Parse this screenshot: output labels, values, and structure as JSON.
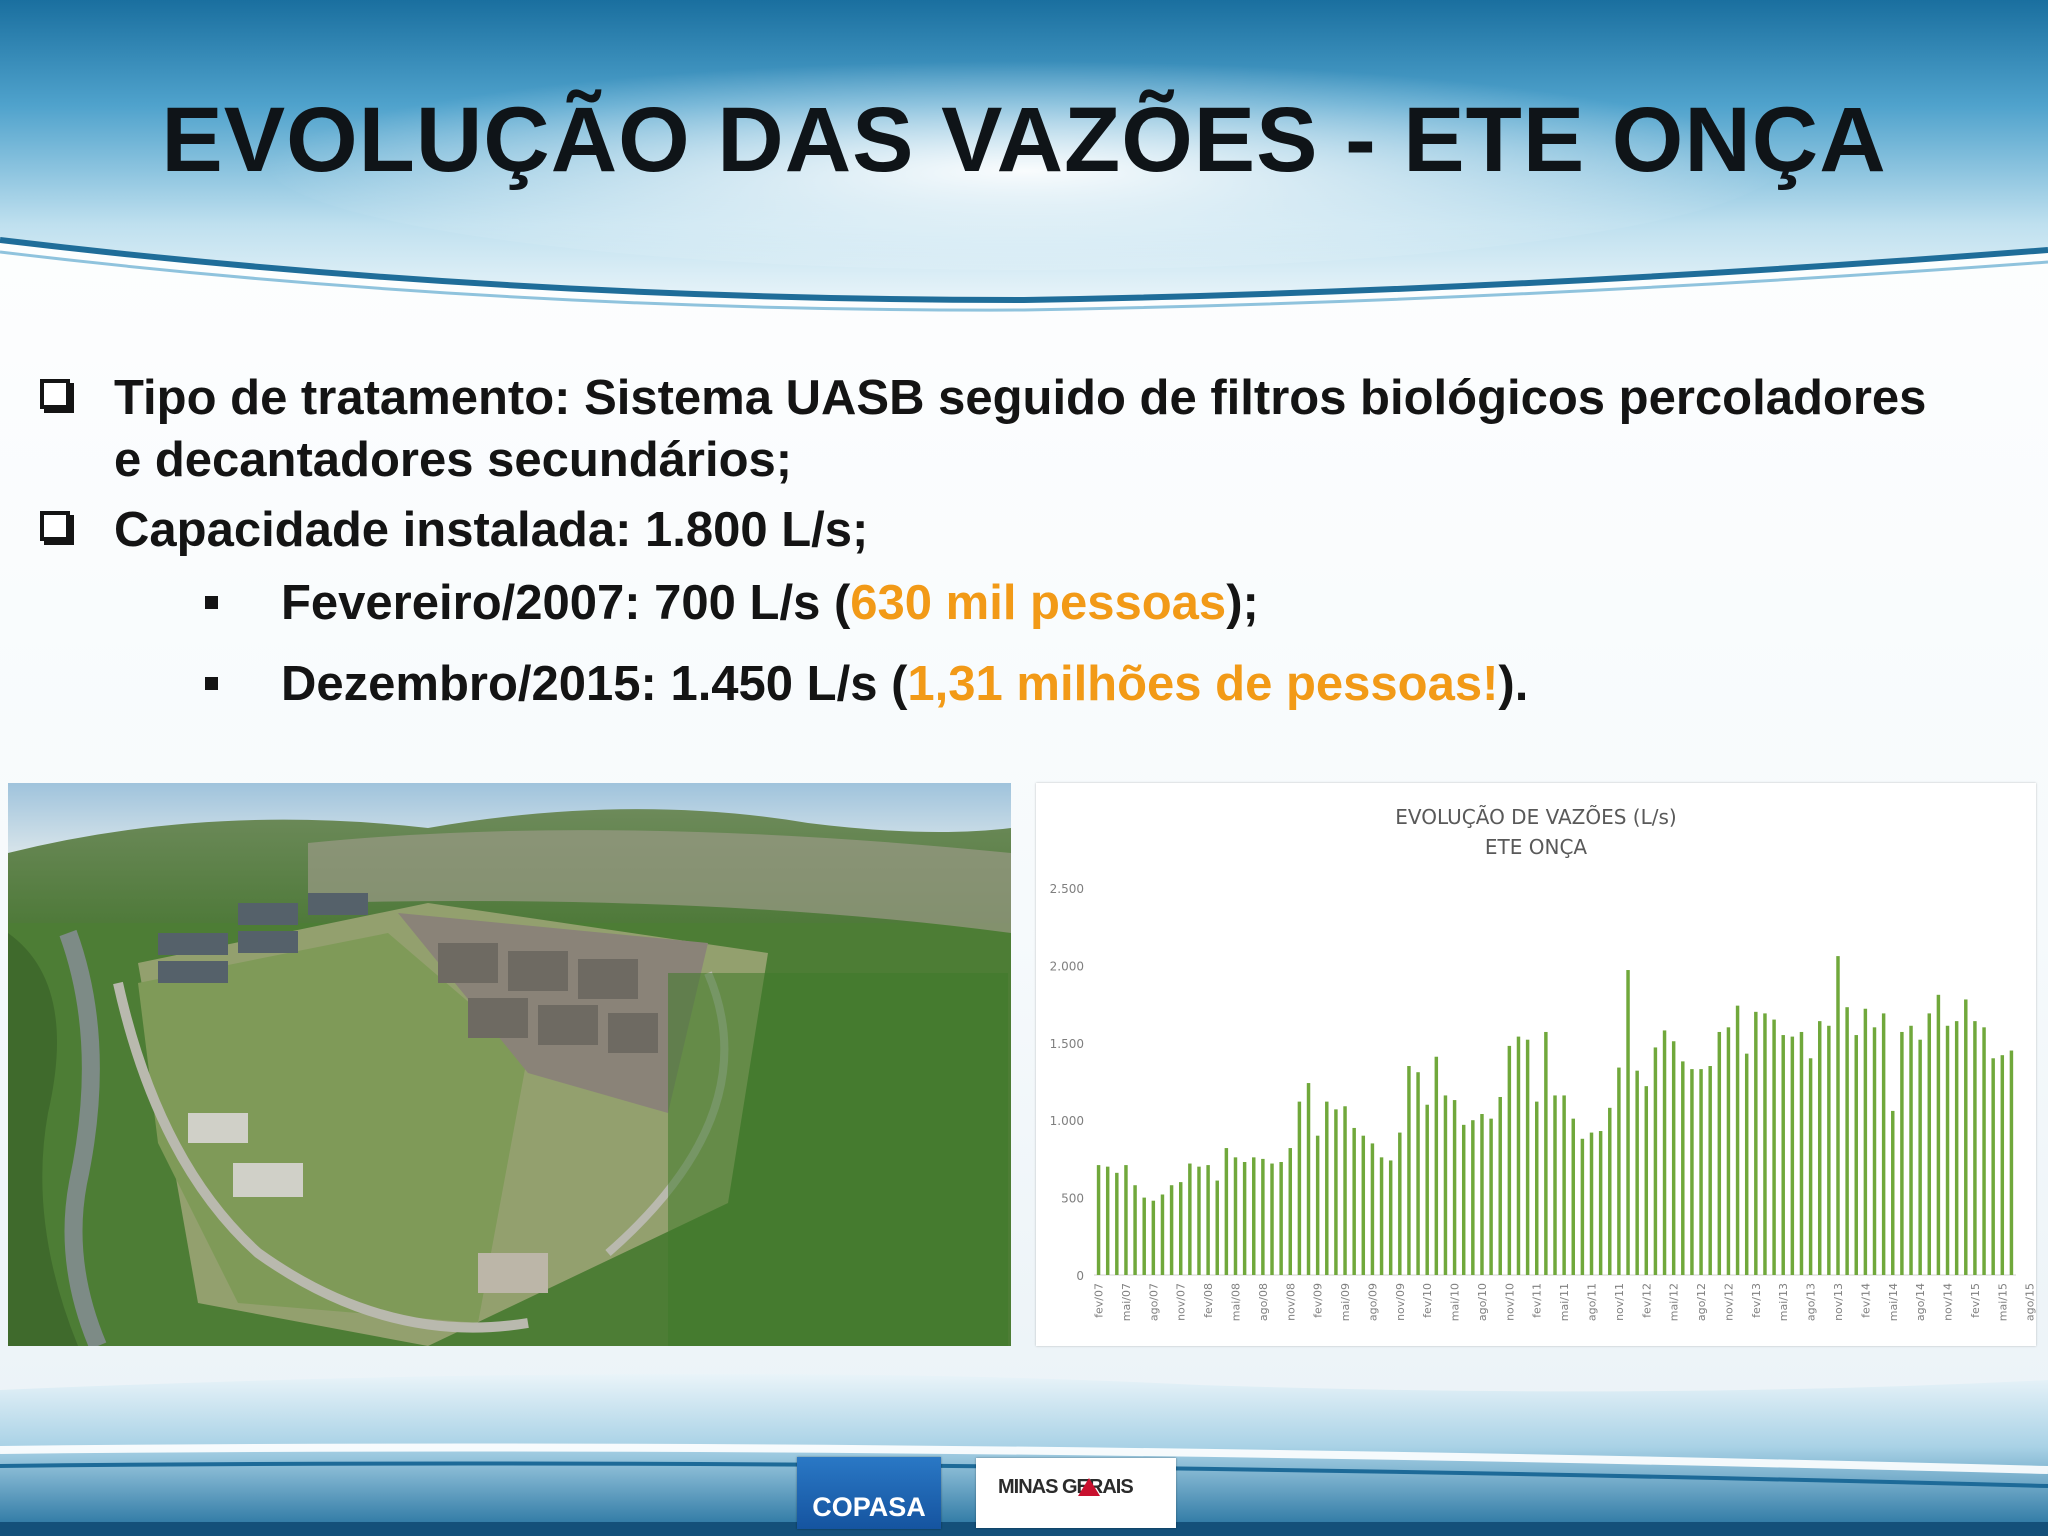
{
  "title": "EVOLUÇÃO DAS VAZÕES - ETE ONÇA",
  "bullets": [
    {
      "text_line1": "Tipo de tratamento: Sistema UASB seguido de filtros biológicos percoladores",
      "text_line2": "e decantadores secundários;"
    },
    {
      "text": "Capacidade instalada: 1.800 L/s;"
    }
  ],
  "sub_bullets": [
    {
      "prefix": "Fevereiro/2007: 700 L/s (",
      "highlight": "630 mil pessoas",
      "suffix": ");"
    },
    {
      "prefix": "Dezembro/2015: 1.450 L/s (",
      "highlight": "1,31 milhões de pessoas!",
      "suffix": ")."
    }
  ],
  "colors": {
    "highlight": "#f29a17",
    "bar": "#70a83b",
    "header": "#1b6a9a"
  },
  "logos": {
    "copasa": "COPASA",
    "minas": "MINAS GERAIS"
  },
  "chart_data": {
    "type": "bar",
    "title": "EVOLUÇÃO DE VAZÕES (L/s)",
    "subtitle": "ETE ONÇA",
    "ylim": [
      0,
      2500
    ],
    "yticks": [
      0,
      500,
      1000,
      1500,
      2000,
      2500
    ],
    "ytick_labels": [
      "0",
      "500",
      "1.000",
      "1.500",
      "2.000",
      "2.500"
    ],
    "grid": false,
    "x_tick_labels": [
      "fev/07",
      "mai/07",
      "ago/07",
      "nov/07",
      "fev/08",
      "mai/08",
      "ago/08",
      "nov/08",
      "fev/09",
      "mai/09",
      "ago/09",
      "nov/09",
      "fev/10",
      "mai/10",
      "ago/10",
      "nov/10",
      "fev/11",
      "mai/11",
      "ago/11",
      "nov/11",
      "fev/12",
      "mai/12",
      "ago/12",
      "nov/12",
      "fev/13",
      "mai/13",
      "ago/13",
      "nov/13",
      "fev/14",
      "mai/14",
      "ago/14",
      "nov/14",
      "fev/15",
      "mai/15",
      "ago/15"
    ],
    "values": [
      710,
      700,
      660,
      710,
      580,
      500,
      480,
      520,
      580,
      600,
      720,
      700,
      710,
      610,
      820,
      760,
      730,
      760,
      750,
      720,
      730,
      820,
      1120,
      1240,
      900,
      1120,
      1070,
      1090,
      950,
      900,
      850,
      760,
      740,
      920,
      1350,
      1310,
      1100,
      1410,
      1160,
      1130,
      970,
      1000,
      1040,
      1010,
      1150,
      1480,
      1540,
      1520,
      1120,
      1570,
      1160,
      1160,
      1010,
      880,
      920,
      930,
      1080,
      1340,
      1970,
      1320,
      1220,
      1470,
      1580,
      1510,
      1380,
      1330,
      1330,
      1350,
      1570,
      1600,
      1740,
      1430,
      1700,
      1690,
      1650,
      1550,
      1540,
      1570,
      1400,
      1640,
      1610,
      2060,
      1730,
      1550,
      1720,
      1600,
      1690,
      1060,
      1570,
      1610,
      1520,
      1690,
      1810,
      1610,
      1640,
      1780,
      1640,
      1600,
      1400,
      1420,
      1450
    ]
  }
}
